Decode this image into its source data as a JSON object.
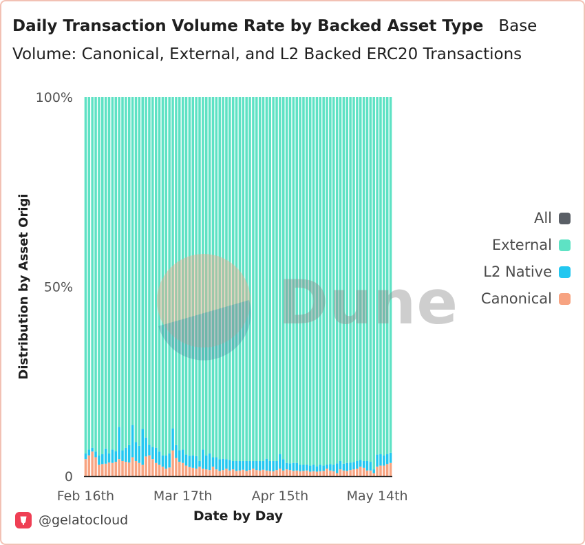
{
  "title": "Daily Transaction Volume Rate by Backed Asset Type",
  "subtitle_part1": "Base",
  "subtitle_part2": "Volume: Canonical, External, and L2 Backed ERC20 Transactions",
  "footer": {
    "handle": "@gelatocloud",
    "icon": "gelato-logo-icon"
  },
  "watermark": "Dune",
  "colors": {
    "All": "#5a5f66",
    "External": "#5ee2c4",
    "L2 Native": "#22c7f0",
    "Canonical": "#f7a381"
  },
  "chart_data": {
    "type": "bar",
    "stacked": true,
    "normalized": true,
    "xlabel": "Date by Day",
    "ylabel": "Distribution by Asset Origi",
    "ylim": [
      0,
      100
    ],
    "y_ticks": [
      "0",
      "50%",
      "100%"
    ],
    "x_ticks": [
      "Feb 16th",
      "Mar 17th",
      "Apr 15th",
      "May 14th"
    ],
    "x_tick_day_index": [
      0,
      29,
      58,
      87
    ],
    "n_days": 92,
    "legend": [
      "All",
      "External",
      "L2 Native",
      "Canonical"
    ],
    "legend_position": "right",
    "series": [
      {
        "name": "Canonical",
        "values": [
          4.5,
          5.5,
          6.5,
          5.0,
          3.0,
          3.2,
          3.3,
          3.6,
          3.5,
          3.8,
          4.5,
          4.0,
          3.8,
          3.6,
          5.0,
          4.0,
          3.5,
          3.0,
          5.2,
          5.5,
          4.5,
          3.5,
          3.0,
          2.5,
          2.0,
          2.3,
          6.8,
          4.8,
          3.8,
          3.5,
          2.8,
          2.4,
          2.2,
          2.0,
          2.5,
          2.0,
          1.8,
          1.6,
          2.5,
          1.8,
          1.4,
          1.6,
          2.0,
          1.5,
          1.8,
          1.4,
          1.5,
          1.7,
          1.4,
          1.6,
          2.0,
          1.6,
          1.5,
          1.7,
          1.5,
          1.4,
          1.3,
          1.6,
          2.0,
          1.5,
          1.8,
          1.6,
          1.4,
          1.5,
          1.3,
          1.4,
          1.5,
          1.2,
          1.3,
          1.2,
          1.3,
          1.4,
          2.0,
          1.5,
          1.3,
          0.8,
          1.8,
          1.5,
          1.4,
          1.6,
          1.8,
          2.0,
          2.5,
          2.2,
          1.5,
          1.5,
          0.8,
          2.5,
          2.8,
          2.8,
          3.2,
          3.5
        ]
      },
      {
        "name": "L2 Native",
        "values": [
          1.5,
          1.5,
          1.0,
          1.5,
          2.5,
          2.6,
          4.0,
          2.4,
          3.5,
          2.8,
          8.5,
          2.8,
          3.7,
          4.6,
          8.5,
          5.0,
          4.5,
          9.5,
          5.0,
          2.8,
          3.2,
          4.0,
          3.5,
          3.0,
          3.5,
          3.7,
          5.8,
          3.4,
          3.0,
          3.5,
          2.9,
          3.0,
          3.3,
          3.3,
          1.5,
          5.0,
          3.7,
          4.4,
          2.5,
          3.2,
          3.1,
          3.0,
          2.5,
          2.8,
          2.2,
          2.6,
          2.5,
          2.3,
          2.6,
          2.4,
          2.0,
          2.4,
          2.5,
          2.3,
          3.1,
          2.6,
          2.7,
          2.4,
          3.8,
          3.0,
          1.7,
          1.8,
          2.1,
          2.0,
          1.7,
          1.6,
          1.5,
          1.6,
          1.7,
          1.4,
          1.7,
          1.4,
          1.0,
          1.7,
          1.7,
          2.6,
          2.2,
          1.8,
          2.1,
          2.0,
          1.9,
          2.0,
          1.8,
          1.8,
          2.5,
          2.3,
          1.0,
          3.2,
          3.0,
          2.7,
          2.6,
          2.7
        ]
      },
      {
        "name": "External",
        "values": [
          94.0,
          93.0,
          92.5,
          93.5,
          94.5,
          94.2,
          92.7,
          94.0,
          93.0,
          93.4,
          87.0,
          93.2,
          92.5,
          91.8,
          86.5,
          91.0,
          92.0,
          87.5,
          89.8,
          91.7,
          92.3,
          92.5,
          93.5,
          94.5,
          94.5,
          94.0,
          87.4,
          91.8,
          93.2,
          93.0,
          94.3,
          94.6,
          94.5,
          94.7,
          96.0,
          93.0,
          94.5,
          94.0,
          95.0,
          95.0,
          95.5,
          95.4,
          95.5,
          95.7,
          96.0,
          96.0,
          96.0,
          96.0,
          96.0,
          96.0,
          96.0,
          96.0,
          96.0,
          96.0,
          95.4,
          96.0,
          96.0,
          96.0,
          94.2,
          95.5,
          96.5,
          96.6,
          96.5,
          96.5,
          97.0,
          97.0,
          97.0,
          97.2,
          97.0,
          97.4,
          97.0,
          97.2,
          97.0,
          96.8,
          97.0,
          96.6,
          96.0,
          96.7,
          96.5,
          96.4,
          96.3,
          96.0,
          95.7,
          96.0,
          96.0,
          96.2,
          98.2,
          94.3,
          94.2,
          94.5,
          94.2,
          93.8
        ]
      }
    ]
  }
}
